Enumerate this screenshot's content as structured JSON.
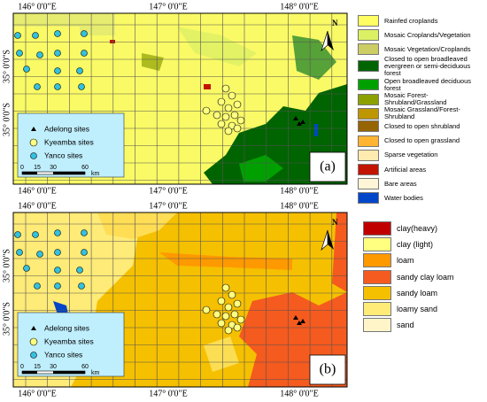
{
  "panels": [
    {
      "label": "(a)",
      "x_labels": [
        "146° 0'0\"E",
        "147° 0'0\"E",
        "148° 0'0\"E"
      ],
      "y_labels": [
        "35° 0'0\"S",
        "35° 0'0\"S"
      ],
      "north": "N",
      "inset_legend": {
        "entries": [
          "Adelong sites",
          "Kyeamba sites",
          "Yanco sites"
        ],
        "scale_ticks": [
          "0",
          "15",
          "30",
          "60"
        ],
        "scale_unit": "km"
      },
      "legend": [
        {
          "name": "Rainfed croplands",
          "color": "#ffff64"
        },
        {
          "name": "Mosaic Croplands/Vegetation",
          "color": "#dcf064"
        },
        {
          "name": "Mosaic Vegetation/Croplands",
          "color": "#cdcd66"
        },
        {
          "name": "Closed to open broadleaved evergreen or semi-deciduous forest",
          "color": "#006400"
        },
        {
          "name": "Open broadleaved deciduous forest",
          "color": "#00a000"
        },
        {
          "name": "Mosaic Forest-Shrubland/Grassland",
          "color": "#8ca000"
        },
        {
          "name": "Mosaic Grassland/Forest-Shrubland",
          "color": "#be9600"
        },
        {
          "name": "Closed to open shrubland",
          "color": "#966400"
        },
        {
          "name": "Closed to open grassland",
          "color": "#ffb432"
        },
        {
          "name": "Sparse vegetation",
          "color": "#ffebaf"
        },
        {
          "name": "Artificial areas",
          "color": "#c31400"
        },
        {
          "name": "Bare areas",
          "color": "#fff5d7"
        },
        {
          "name": "Water bodies",
          "color": "#0046c8"
        }
      ]
    },
    {
      "label": "(b)",
      "x_labels": [
        "146° 0'0\"E",
        "147° 0'0\"E",
        "148° 0'0\"E"
      ],
      "y_labels": [
        "35° 0'0\"S",
        "35° 0'0\"S"
      ],
      "north": "N",
      "inset_legend": {
        "entries": [
          "Adelong sites",
          "Kyeamba sites",
          "Yanco sites"
        ],
        "scale_ticks": [
          "0",
          "15",
          "30",
          "60"
        ],
        "scale_unit": "km"
      },
      "legend": [
        {
          "name": "clay(heavy)",
          "color": "#c00000"
        },
        {
          "name": "clay (light)",
          "color": "#ffff80"
        },
        {
          "name": "loam",
          "color": "#ff9900"
        },
        {
          "name": "sandy clay loam",
          "color": "#f55a1e"
        },
        {
          "name": "sandy loam",
          "color": "#f5c000"
        },
        {
          "name": "loamy sand",
          "color": "#ffeb78"
        },
        {
          "name": "sand",
          "color": "#fff5c8"
        }
      ]
    }
  ]
}
